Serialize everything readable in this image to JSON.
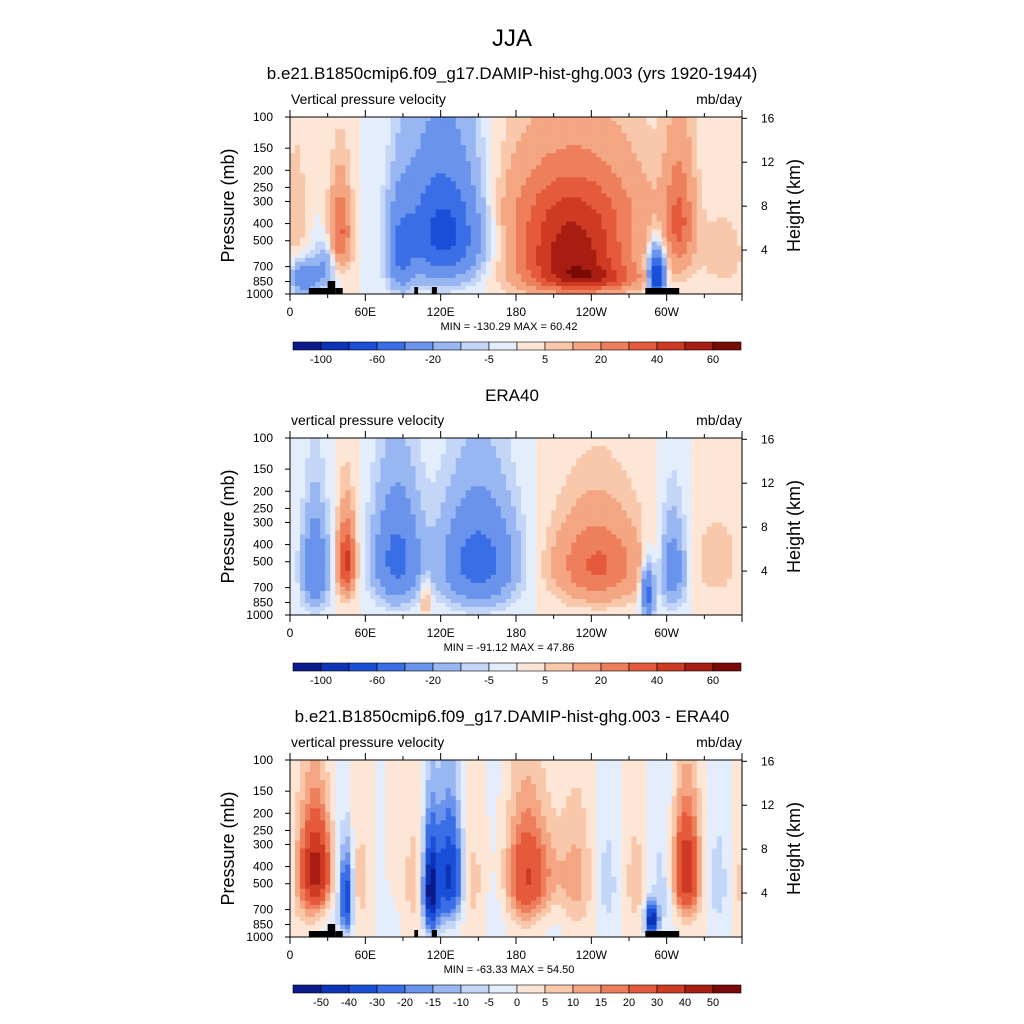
{
  "main_title": "JJA",
  "colors": {
    "palette": [
      "#0b1a8a",
      "#0d33b8",
      "#1a4fd8",
      "#3a6ee6",
      "#6a93ec",
      "#98b6f1",
      "#c4d6f7",
      "#e3edfb",
      "#fde6d6",
      "#f9c8ab",
      "#f4a582",
      "#ee7f5c",
      "#e55a3a",
      "#cf3a22",
      "#a81d12",
      "#7a0a05"
    ]
  },
  "chart_data": [
    {
      "type": "heatmap",
      "title": "b.e21.B1850cmip6.f09_g17.DAMIP-hist-ghg.003 (yrs 1920-1944)",
      "left_label": "Vertical pressure velocity",
      "units": "mb/day",
      "ylabel": "Pressure (mb)",
      "y2label": "Height (km)",
      "pressure_ticks": [
        "100",
        "150",
        "200",
        "250",
        "300",
        "400",
        "500",
        "700",
        "850",
        "1000"
      ],
      "height_ticks": [
        "16",
        "12",
        "8",
        "4"
      ],
      "x_ticks": [
        "0",
        "60E",
        "120E",
        "180",
        "120W",
        "60W"
      ],
      "stats": "MIN = -130.29  MAX =  60.42",
      "colorbar_labels": [
        "-100",
        "-60",
        "-20",
        "-5",
        "5",
        "20",
        "40",
        "60"
      ],
      "colorbar_levels": [
        -120,
        -100,
        -80,
        -60,
        -40,
        -20,
        -10,
        -5,
        0,
        5,
        10,
        20,
        30,
        40,
        50,
        60
      ],
      "topography": true,
      "ylim": [
        1000,
        100
      ],
      "xlim": [
        0,
        360
      ]
    },
    {
      "type": "heatmap",
      "title": "ERA40",
      "left_label": "vertical pressure velocity",
      "units": "mb/day",
      "ylabel": "Pressure (mb)",
      "y2label": "Height (km)",
      "pressure_ticks": [
        "100",
        "150",
        "200",
        "250",
        "300",
        "400",
        "500",
        "700",
        "850",
        "1000"
      ],
      "height_ticks": [
        "16",
        "12",
        "8",
        "4"
      ],
      "x_ticks": [
        "0",
        "60E",
        "120E",
        "180",
        "120W",
        "60W"
      ],
      "stats": "MIN = -91.12  MAX =  47.86",
      "colorbar_labels": [
        "-100",
        "-60",
        "-20",
        "-5",
        "5",
        "20",
        "40",
        "60"
      ],
      "colorbar_levels": [
        -120,
        -100,
        -80,
        -60,
        -40,
        -20,
        -10,
        -5,
        0,
        5,
        10,
        20,
        30,
        40,
        50,
        60
      ],
      "topography": false,
      "ylim": [
        1000,
        100
      ],
      "xlim": [
        0,
        360
      ]
    },
    {
      "type": "heatmap",
      "title": "b.e21.B1850cmip6.f09_g17.DAMIP-hist-ghg.003 - ERA40",
      "left_label": "vertical pressure velocity",
      "units": "mb/day",
      "ylabel": "Pressure (mb)",
      "y2label": "Height (km)",
      "pressure_ticks": [
        "100",
        "150",
        "200",
        "250",
        "300",
        "400",
        "500",
        "700",
        "850",
        "1000"
      ],
      "height_ticks": [
        "16",
        "12",
        "8",
        "4"
      ],
      "x_ticks": [
        "0",
        "60E",
        "120E",
        "180",
        "120W",
        "60W"
      ],
      "stats": "MIN = -63.33  MAX =  54.50",
      "colorbar_labels": [
        "-50",
        "-40",
        "-30",
        "-20",
        "-15",
        "-10",
        "-5",
        "0",
        "5",
        "10",
        "15",
        "20",
        "30",
        "40",
        "50"
      ],
      "colorbar_levels": [
        -55,
        -50,
        -40,
        -30,
        -20,
        -15,
        -10,
        -5,
        0,
        5,
        10,
        15,
        20,
        30,
        40,
        50
      ],
      "topography": true,
      "ylim": [
        1000,
        100
      ],
      "xlim": [
        0,
        360
      ]
    }
  ]
}
